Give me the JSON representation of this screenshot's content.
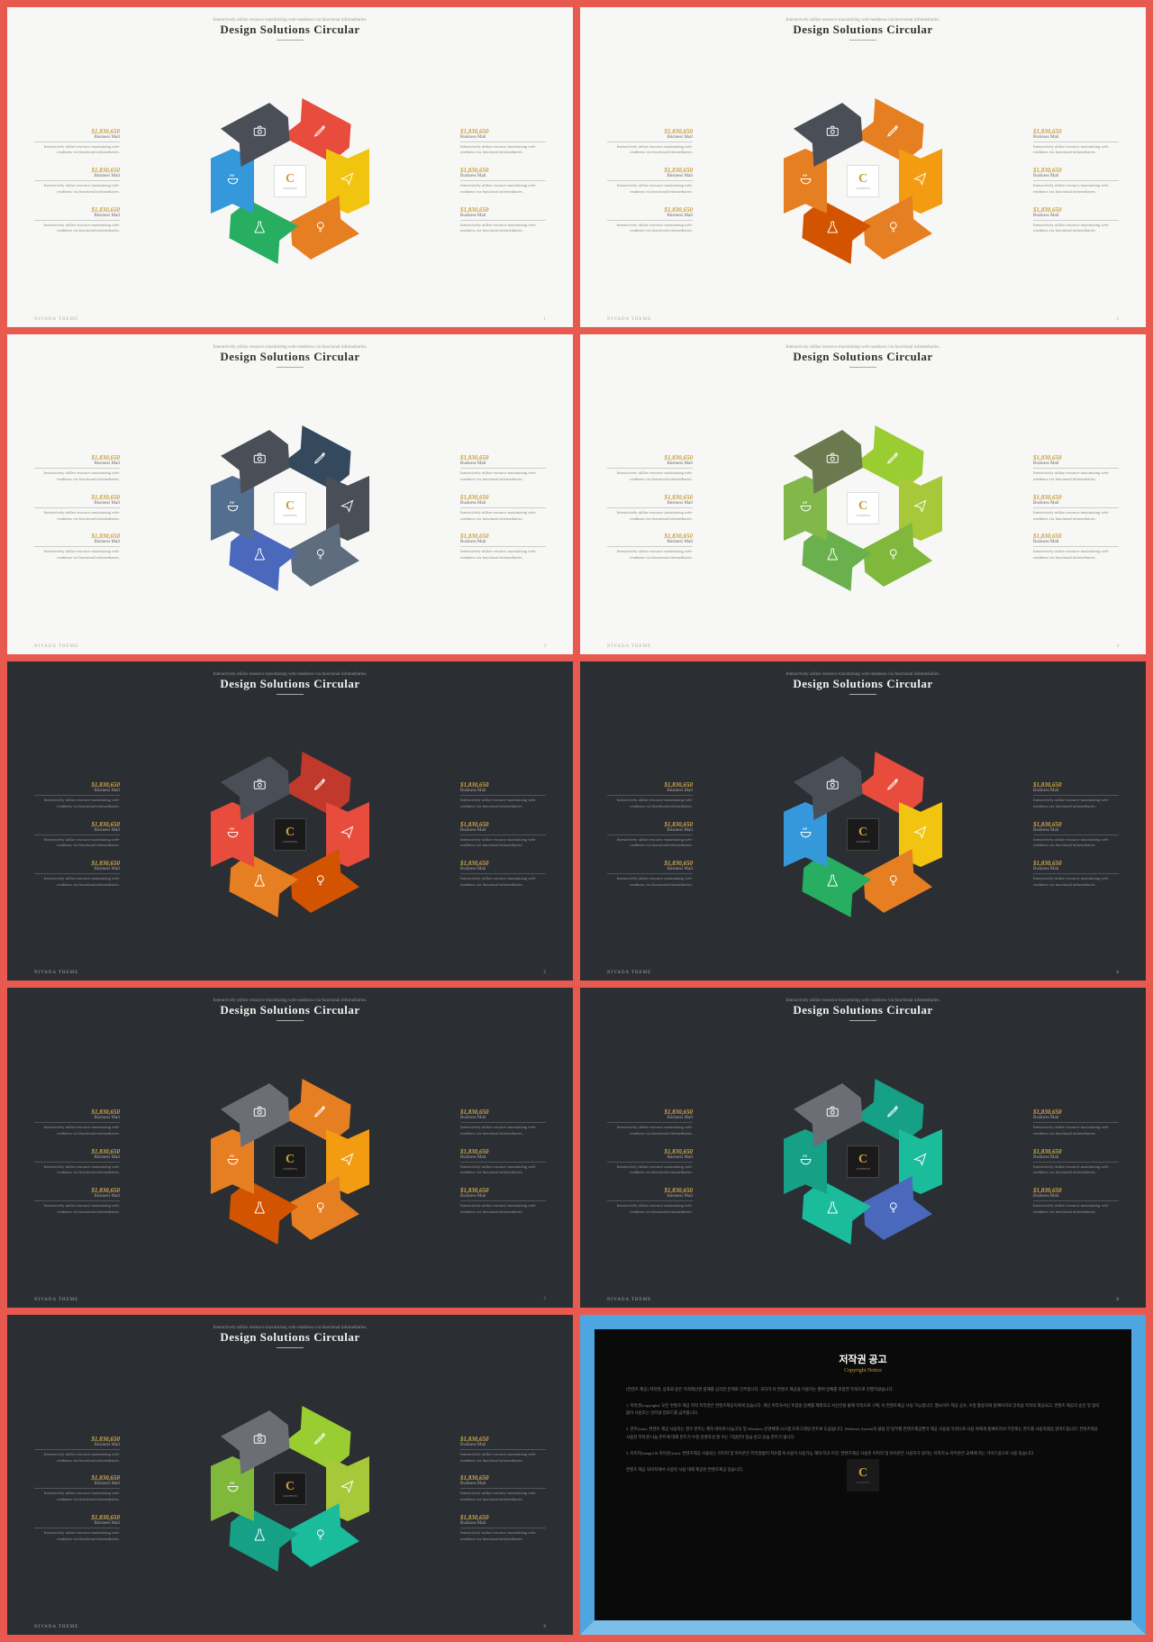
{
  "slide_title": "Design Solutions Circular",
  "slide_subtitle": "Interactively utilize resource maximizing web-readiness via functional infomediaries.",
  "footer": "NIVADA THEME",
  "item": {
    "amount": "$1,830,650",
    "label": "Business Mail",
    "desc": "Interactively utilize resource maximizing web-readiness via functional infomediaries."
  },
  "center_logo": {
    "letter": "C",
    "text": "CONTENTS"
  },
  "palettes": [
    {
      "bg": "light",
      "colors": [
        "#e74c3c",
        "#f1c40f",
        "#e67e22",
        "#27ae60",
        "#3498db",
        "#4a4e57"
      ]
    },
    {
      "bg": "light",
      "colors": [
        "#e67e22",
        "#f39c12",
        "#e67e22",
        "#d35400",
        "#e67e22",
        "#4a4e57"
      ]
    },
    {
      "bg": "light",
      "colors": [
        "#34495e",
        "#4a4e57",
        "#5d6d7e",
        "#4a69bd",
        "#546e8f",
        "#4a4e57"
      ]
    },
    {
      "bg": "light",
      "colors": [
        "#9acd32",
        "#a7c838",
        "#7fb83b",
        "#6ab04c",
        "#82b84a",
        "#6b7a4e"
      ]
    },
    {
      "bg": "dark",
      "colors": [
        "#c0392b",
        "#e74c3c",
        "#d35400",
        "#e67e22",
        "#e74c3c",
        "#4a4e57"
      ]
    },
    {
      "bg": "dark",
      "colors": [
        "#e74c3c",
        "#f1c40f",
        "#e67e22",
        "#27ae60",
        "#3498db",
        "#4a4e57"
      ]
    },
    {
      "bg": "dark",
      "colors": [
        "#e67e22",
        "#f39c12",
        "#e67e22",
        "#d35400",
        "#e67e22",
        "#6b6e75"
      ]
    },
    {
      "bg": "dark",
      "colors": [
        "#16a085",
        "#1abc9c",
        "#4a69bd",
        "#1abc9c",
        "#16a085",
        "#6b6e75"
      ]
    },
    {
      "bg": "dark",
      "colors": [
        "#9acd32",
        "#a7c838",
        "#1abc9c",
        "#16a085",
        "#7fb83b",
        "#6b6e75"
      ]
    }
  ],
  "icons_order": [
    "pencil",
    "plane",
    "bulb",
    "flask",
    "bowl",
    "camera"
  ],
  "seg_rotations": [
    "-28deg",
    "-90deg",
    "-152deg",
    "-208deg",
    "-270deg",
    "-332deg"
  ],
  "copyright": {
    "title": "저작권 공고",
    "subtitle": "Copyright Notice",
    "p1": "[컨텐츠 제공] 저작권, 상표와 같은 지적재산권 침해를 심각한 문제로 간주합니다. 귀하가 이 컨텐츠 제공을 이용하는 행위 일체를 포함한 목적으로 진행하였습니다.",
    "p2": "1. 저작권(copyright): 모든 컨텐츠 제공 저작 저작권은 컨텐츠제공지에게 있습니다. 개인 저작자서신 포함을 일체를 제외하고 서신만을 통해 목적으로 구매, 이 컨텐츠제공 사용 가능합니다. 웹사이트 제공 공유, 수정 활용지에 홈페이지의 강의용 목적의 제공되고, 컨텐츠 제공의 승인 및 협의 없이 사용또는 인터넷 업로드를 금지합니다.",
    "p3": "2. 폰트(font): 컨텐츠 제공 사용하는 경우 폰트는 제목 네이버 나눔고딕 및 Windows 운영체제 시스템 프로그래밍 폰트로 도움됩니다. Windows System의 클립 전 일부를 컨텐츠제공뿐막 제공 사용을 목적으로 사용 위해개 홈페이지의 부분외는 폰트를 사용하였음 알려드립니다. 컨텐츠제공 사용된 저작권 나눔 폰트에 대해 폰트가 수정 일명작성 할 수는 기업만이 점습 받고 있습 폰트가 없니다.",
    "p4": "3. 이미지(image) & 아이콘(icon): 컨텐츠제공 사용되는 이미지 및 아이콘은 저작권없이 자유롭게 사용이 사용가능 해야 하고 이것. 컨텐츠제공 사용된 이미지 및 아이콘은 사용자가 원하는 이미지 & 아이콘은 교체에 하는 가이드용으로 사용 있습니다.",
    "p5": "컨텐츠 제공 되어지에서 사용된 사용 대해 제공된 컨텐츠제공 있습니다."
  }
}
